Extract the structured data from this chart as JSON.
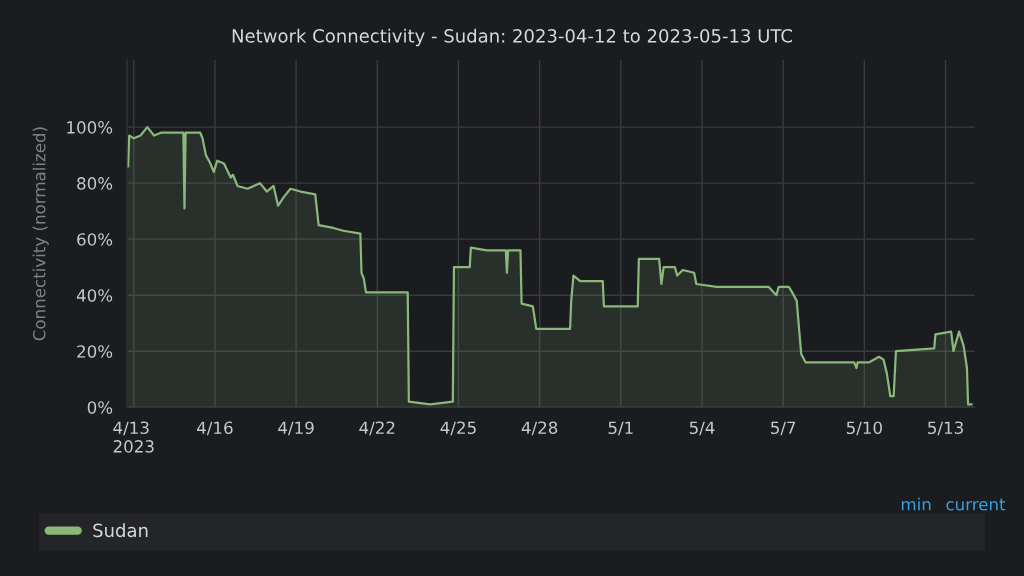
{
  "chart_data": {
    "type": "area",
    "title": "Network Connectivity - Sudan: 2023-04-12 to 2023-05-13 UTC",
    "ylabel": "Connectivity (normalized)",
    "x": [
      "2023-04-12T19:00",
      "2023-04-12T20:00",
      "2023-04-13T00:00",
      "2023-04-13T06:00",
      "2023-04-13T12:00",
      "2023-04-13T18:00",
      "2023-04-14T00:00",
      "2023-04-14T09:00",
      "2023-04-14T18:00",
      "2023-04-14T20:00",
      "2023-04-14T21:00",
      "2023-04-14T22:00",
      "2023-04-15T02:00",
      "2023-04-15T11:00",
      "2023-04-15T13:00",
      "2023-04-15T16:00",
      "2023-04-15T20:00",
      "2023-04-15T23:00",
      "2023-04-16T02:00",
      "2023-04-16T08:00",
      "2023-04-16T14:00",
      "2023-04-16T16:00",
      "2023-04-16T20:00",
      "2023-04-17T05:00",
      "2023-04-17T16:00",
      "2023-04-17T22:00",
      "2023-04-18T04:00",
      "2023-04-18T08:00",
      "2023-04-18T13:00",
      "2023-04-18T19:00",
      "2023-04-19T04:00",
      "2023-04-19T17:00",
      "2023-04-19T20:00",
      "2023-04-20T09:00",
      "2023-04-20T18:00",
      "2023-04-21T09:00",
      "2023-04-21T10:00",
      "2023-04-21T12:00",
      "2023-04-21T14:00",
      "2023-04-22T11:00",
      "2023-04-23T03:00",
      "2023-04-23T04:00",
      "2023-04-23T23:00",
      "2023-04-24T19:00",
      "2023-04-24T20:00",
      "2023-04-25T10:00",
      "2023-04-25T11:00",
      "2023-04-26T01:00",
      "2023-04-26T18:00",
      "2023-04-26T19:00",
      "2023-04-26T20:00",
      "2023-04-27T07:00",
      "2023-04-27T08:00",
      "2023-04-27T18:00",
      "2023-04-27T21:00",
      "2023-04-29T03:00",
      "2023-04-29T04:00",
      "2023-04-29T06:00",
      "2023-04-29T12:00",
      "2023-04-30T08:00",
      "2023-04-30T09:00",
      "2023-05-01T15:00",
      "2023-05-01T16:00",
      "2023-05-02T10:00",
      "2023-05-02T12:00",
      "2023-05-02T14:00",
      "2023-05-03T00:00",
      "2023-05-03T02:00",
      "2023-05-03T07:00",
      "2023-05-03T17:00",
      "2023-05-03T19:00",
      "2023-05-04T13:00",
      "2023-05-06T11:00",
      "2023-05-06T18:00",
      "2023-05-06T20:00",
      "2023-05-07T05:00",
      "2023-05-07T08:00",
      "2023-05-07T12:00",
      "2023-05-07T16:00",
      "2023-05-07T20:00",
      "2023-05-09T15:00",
      "2023-05-09T17:00",
      "2023-05-09T18:00",
      "2023-05-10T04:00",
      "2023-05-10T13:00",
      "2023-05-10T17:00",
      "2023-05-10T20:00",
      "2023-05-10T23:00",
      "2023-05-11T02:00",
      "2023-05-11T04:00",
      "2023-05-12T14:00",
      "2023-05-12T15:00",
      "2023-05-13T05:00",
      "2023-05-13T07:00",
      "2023-05-13T12:00",
      "2023-05-13T16:00",
      "2023-05-13T19:00",
      "2023-05-13T20:00",
      "2023-05-13T23:00"
    ],
    "series": [
      {
        "name": "Sudan",
        "color": "#8ab87a",
        "values": [
          86,
          97,
          96,
          97,
          100,
          97,
          98,
          98,
          98,
          98,
          71,
          98,
          98,
          98,
          96,
          90,
          87,
          84,
          88,
          87,
          82,
          83,
          79,
          78,
          80,
          77,
          79,
          72,
          75,
          78,
          77,
          76,
          65,
          64,
          63,
          62,
          48,
          46,
          41,
          41,
          41,
          2,
          1,
          2,
          50,
          50,
          57,
          56,
          56,
          48,
          56,
          56,
          37,
          36,
          28,
          28,
          38,
          47,
          45,
          45,
          36,
          36,
          53,
          53,
          44,
          50,
          50,
          47,
          49,
          48,
          44,
          43,
          43,
          40,
          43,
          43,
          41,
          38,
          19,
          16,
          16,
          14,
          16,
          16,
          18,
          17,
          12,
          4,
          4,
          20,
          21,
          26,
          27,
          20,
          27,
          22,
          14,
          1,
          1
        ]
      }
    ],
    "xlim": [
      "2023-04-12T18:00",
      "2023-05-14T02:00"
    ],
    "xticks": [
      {
        "value": "2023-04-13",
        "label": "4/13\n2023"
      },
      {
        "value": "2023-04-16",
        "label": "4/16"
      },
      {
        "value": "2023-04-19",
        "label": "4/19"
      },
      {
        "value": "2023-04-22",
        "label": "4/22"
      },
      {
        "value": "2023-04-25",
        "label": "4/25"
      },
      {
        "value": "2023-04-28",
        "label": "4/28"
      },
      {
        "value": "2023-05-01",
        "label": "5/1"
      },
      {
        "value": "2023-05-04",
        "label": "5/4"
      },
      {
        "value": "2023-05-07",
        "label": "5/7"
      },
      {
        "value": "2023-05-10",
        "label": "5/10"
      },
      {
        "value": "2023-05-13",
        "label": "5/13"
      }
    ],
    "ylim": [
      0,
      124
    ],
    "yticks": [
      {
        "value": 0,
        "label": "0%"
      },
      {
        "value": 20,
        "label": "20%"
      },
      {
        "value": 40,
        "label": "40%"
      },
      {
        "value": 60,
        "label": "60%"
      },
      {
        "value": 80,
        "label": "80%"
      },
      {
        "value": 100,
        "label": "100%"
      }
    ],
    "grid": true,
    "legend": "bottom",
    "marker": "none",
    "line_style": "solid",
    "annotations": [
      "min",
      "current"
    ]
  }
}
